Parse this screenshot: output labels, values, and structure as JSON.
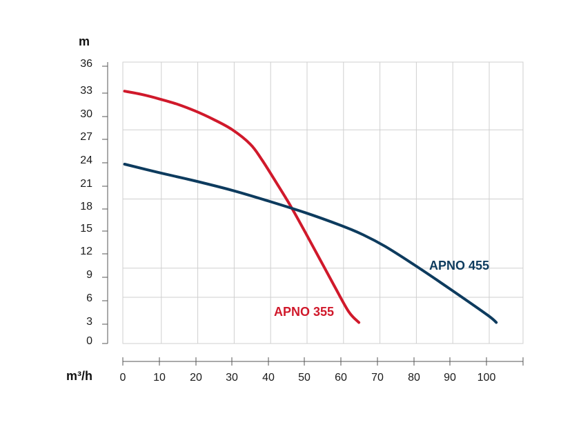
{
  "chart_data": {
    "type": "line",
    "title": "",
    "xlabel": "m³/h",
    "ylabel": "m",
    "xlim": [
      0,
      110
    ],
    "ylim": [
      0,
      36
    ],
    "x_ticks": [
      0,
      10,
      20,
      30,
      40,
      50,
      60,
      70,
      80,
      90,
      100
    ],
    "y_ticks": [
      0,
      3,
      6,
      9,
      12,
      15,
      18,
      21,
      24,
      27,
      30,
      33,
      36
    ],
    "grid": true,
    "series": [
      {
        "name": "APNO 355",
        "color": "#d0192b",
        "x": [
          0.5,
          5,
          10,
          15,
          20,
          25,
          30,
          35,
          38,
          42,
          46,
          50,
          54,
          58,
          62,
          64.8
        ],
        "y": [
          32.3,
          31.9,
          31.3,
          30.6,
          29.7,
          28.6,
          27.3,
          25.4,
          23.5,
          20.5,
          17.4,
          14.0,
          10.5,
          7.0,
          3.6,
          2.2
        ]
      },
      {
        "name": "APNO 455",
        "color": "#0d3b5e",
        "x": [
          0.5,
          10,
          20,
          30,
          40,
          50,
          60,
          66,
          72,
          80,
          90,
          100,
          102.5
        ],
        "y": [
          22.8,
          21.7,
          20.6,
          19.4,
          18.0,
          16.5,
          14.8,
          13.6,
          12.1,
          9.7,
          6.5,
          3.2,
          2.2
        ]
      }
    ]
  }
}
